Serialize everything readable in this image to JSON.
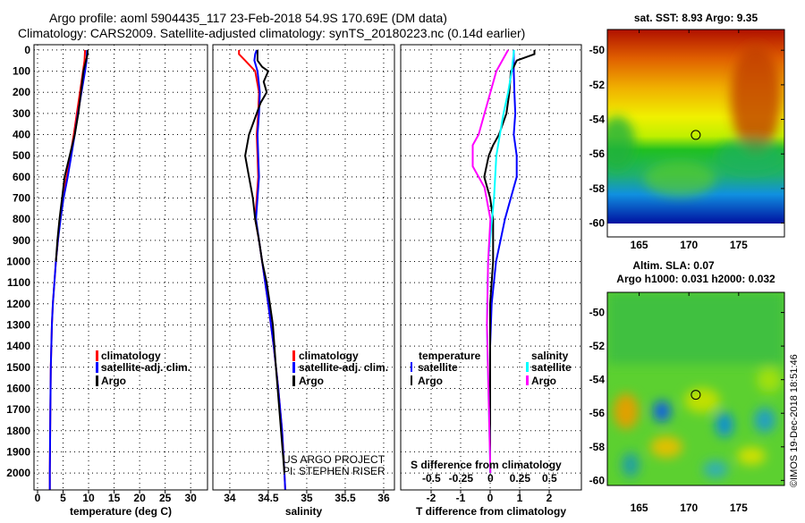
{
  "title": {
    "line1": "Argo profile: aoml 5904435_117 23-Feb-2018 54.9S 170.69E (DM data)",
    "line2": "Climatology: CARS2009. Satellite-adjusted climatology: synTS_20180223.nc (0.14d earlier)"
  },
  "colors": {
    "climatology": "#ff0000",
    "satellite": "#0000ff",
    "argo": "#000000",
    "sal_satellite": "#00ffff",
    "sal_argo": "#ff00ff"
  },
  "chart_data": [
    {
      "type": "line",
      "name": "temperature-profile",
      "xlabel": "temperature (deg C)",
      "ylabel": "",
      "xlim": [
        -0.7,
        33.3
      ],
      "ylim": [
        2080,
        -25
      ],
      "xticks": [
        0,
        5,
        10,
        15,
        20,
        25,
        30
      ],
      "yticks": [
        0,
        100,
        200,
        300,
        400,
        500,
        600,
        700,
        800,
        900,
        1000,
        1100,
        1200,
        1300,
        1400,
        1500,
        1600,
        1700,
        1800,
        1900,
        2000
      ],
      "legend": [
        "climatology",
        "satellite-adj. clim.",
        "Argo"
      ],
      "legend_placement": "lower-right",
      "series": [
        {
          "name": "climatology",
          "color": "#ff0000",
          "depth": [
            0,
            50,
            100,
            200,
            300,
            400,
            500,
            600,
            700,
            800,
            900,
            1000,
            1100,
            1200,
            1300,
            1500,
            1700,
            2000,
            2080
          ],
          "values": [
            9.3,
            9.2,
            8.9,
            8.3,
            7.7,
            7.1,
            6.4,
            5.7,
            5.0,
            4.4,
            4.0,
            3.6,
            3.3,
            3.0,
            2.8,
            2.6,
            2.5,
            2.4,
            2.4
          ]
        },
        {
          "name": "satellite-adj. clim.",
          "color": "#0000ff",
          "depth": [
            0,
            50,
            100,
            200,
            300,
            400,
            500,
            600,
            700,
            800,
            900,
            1000,
            1100,
            1200,
            1300,
            1500,
            1700,
            2000,
            2080
          ],
          "values": [
            9.7,
            9.6,
            9.3,
            8.6,
            7.9,
            7.3,
            6.6,
            5.9,
            5.1,
            4.5,
            4.0,
            3.6,
            3.3,
            3.0,
            2.8,
            2.6,
            2.5,
            2.4,
            2.4
          ]
        },
        {
          "name": "Argo",
          "color": "#000000",
          "depth": [
            0,
            20,
            50,
            100,
            200,
            300,
            400,
            500,
            600,
            700,
            800,
            900,
            1000
          ],
          "values": [
            9.8,
            9.8,
            9.5,
            9.0,
            8.5,
            8.0,
            7.3,
            6.3,
            5.3,
            4.8,
            4.3,
            3.9,
            3.6
          ]
        }
      ]
    },
    {
      "type": "line",
      "name": "salinity-profile",
      "xlabel": "salinity",
      "ylabel": "",
      "xlim": [
        33.78,
        36.14
      ],
      "ylim": [
        2080,
        -25
      ],
      "xticks": [
        34,
        34.5,
        35,
        35.5,
        36
      ],
      "legend": [
        "climatology",
        "satellite-adj. clim.",
        "Argo"
      ],
      "legend_placement": "lower-right",
      "annotation": [
        "US ARGO PROJECT",
        "PI: STEPHEN RISER"
      ],
      "series": [
        {
          "name": "climatology",
          "color": "#ff0000",
          "depth": [
            0,
            20,
            50,
            100,
            200,
            300,
            400,
            500,
            600,
            700,
            800,
            900,
            1000,
            1200,
            1400,
            1600,
            1800,
            2000,
            2080
          ],
          "values": [
            34.12,
            34.12,
            34.2,
            34.33,
            34.38,
            34.37,
            34.35,
            34.36,
            34.37,
            34.35,
            34.33,
            34.38,
            34.42,
            34.5,
            34.57,
            34.63,
            34.68,
            34.71,
            34.72
          ]
        },
        {
          "name": "satellite-adj. clim.",
          "color": "#0000ff",
          "depth": [
            0,
            20,
            50,
            100,
            200,
            300,
            400,
            500,
            600,
            700,
            800,
            900,
            1000,
            1200,
            1400,
            1600,
            1800,
            2000,
            2080
          ],
          "values": [
            34.35,
            34.33,
            34.32,
            34.36,
            34.39,
            34.38,
            34.36,
            34.37,
            34.38,
            34.36,
            34.34,
            34.38,
            34.42,
            34.5,
            34.57,
            34.63,
            34.68,
            34.71,
            34.72
          ]
        },
        {
          "name": "Argo",
          "color": "#000000",
          "depth": [
            0,
            50,
            80,
            100,
            150,
            200,
            250,
            300,
            400,
            500,
            600,
            700,
            800,
            900,
            1000,
            1100,
            1200,
            1300,
            1500,
            2000
          ],
          "values": [
            34.36,
            34.36,
            34.42,
            34.5,
            34.44,
            34.48,
            34.4,
            34.35,
            34.25,
            34.2,
            34.25,
            34.3,
            34.33,
            34.38,
            34.42,
            34.48,
            34.52,
            34.56,
            34.6,
            34.71
          ]
        }
      ]
    },
    {
      "type": "line",
      "name": "difference-profile",
      "xlabel": "T difference from climatology",
      "x2label": "S difference from climatology",
      "xlim": [
        -3.03,
        3.09
      ],
      "x2lim": [
        -0.76,
        0.77
      ],
      "ylim": [
        2080,
        -25
      ],
      "xticks": [
        -2,
        -1,
        0,
        1,
        2
      ],
      "x2ticks": [
        -0.5,
        -0.25,
        0,
        0.25,
        0.5
      ],
      "x2ticklabels": [
        "-0.5",
        "-0.25",
        "0",
        "0.25",
        "0.5"
      ],
      "legend_temperature": {
        "title": "temperature",
        "items": [
          "satellite",
          "Argo"
        ]
      },
      "legend_salinity": {
        "title": "salinity",
        "items": [
          "satellite",
          "Argo"
        ]
      },
      "series": [
        {
          "name": "T satellite",
          "axis": "T",
          "color": "#0000ff",
          "depth": [
            0,
            100,
            200,
            300,
            400,
            500,
            600,
            650,
            700,
            800,
            900,
            1000,
            1200,
            1400,
            2000
          ],
          "values": [
            0.8,
            0.8,
            0.82,
            0.85,
            0.8,
            0.9,
            0.9,
            0.8,
            0.7,
            0.5,
            0.35,
            0.2,
            0.05,
            0.0,
            0.0
          ]
        },
        {
          "name": "T Argo",
          "axis": "T",
          "color": "#000000",
          "depth": [
            0,
            20,
            50,
            80,
            100,
            200,
            300,
            400,
            450,
            500,
            600,
            650,
            700,
            800,
            1000,
            1200,
            2000
          ],
          "values": [
            1.5,
            1.5,
            0.9,
            0.8,
            0.7,
            0.65,
            0.55,
            0.3,
            0.1,
            -0.05,
            -0.2,
            -0.1,
            0.0,
            0.1,
            0.1,
            0.0,
            0.0
          ]
        },
        {
          "name": "S satellite",
          "axis": "S",
          "color": "#00ffff",
          "depth": [
            0,
            50,
            100,
            200,
            300,
            400,
            500,
            700,
            1000,
            1300,
            2000
          ],
          "values": [
            0.2,
            0.19,
            0.18,
            0.15,
            0.11,
            0.08,
            0.05,
            0.03,
            -0.02,
            -0.03,
            0.0
          ]
        },
        {
          "name": "S Argo",
          "axis": "S",
          "color": "#ff00ff",
          "depth": [
            0,
            50,
            100,
            200,
            300,
            400,
            450,
            550,
            650,
            800,
            1000,
            1300,
            2000
          ],
          "values": [
            0.15,
            0.1,
            0.05,
            0.0,
            -0.05,
            -0.1,
            -0.15,
            -0.15,
            -0.05,
            0.0,
            -0.02,
            -0.03,
            0.0
          ]
        }
      ]
    }
  ],
  "maps": [
    {
      "name": "sst-map",
      "title": "sat. SST: 8.93 Argo: 9.35",
      "xticks": [
        165,
        170,
        175
      ],
      "yticks": [
        -50,
        -52,
        -54,
        -56,
        -58,
        -60
      ],
      "xlim": [
        161.8,
        179.6
      ],
      "ylim": [
        -48.8,
        -60.8
      ],
      "marker": [
        170.69,
        -54.9
      ]
    },
    {
      "name": "sla-map",
      "title1": "Altim. SLA: 0.07",
      "title2": "Argo h1000: 0.031 h2000: 0.032",
      "xticks": [
        165,
        170,
        175
      ],
      "yticks": [
        -50,
        -52,
        -54,
        -56,
        -58,
        -60
      ],
      "xlim": [
        161.8,
        179.6
      ],
      "ylim": [
        -48.8,
        -60.3
      ],
      "marker": [
        170.69,
        -54.9
      ]
    }
  ],
  "credit": "©IMOS 19-Dec-2018 18:51:46"
}
